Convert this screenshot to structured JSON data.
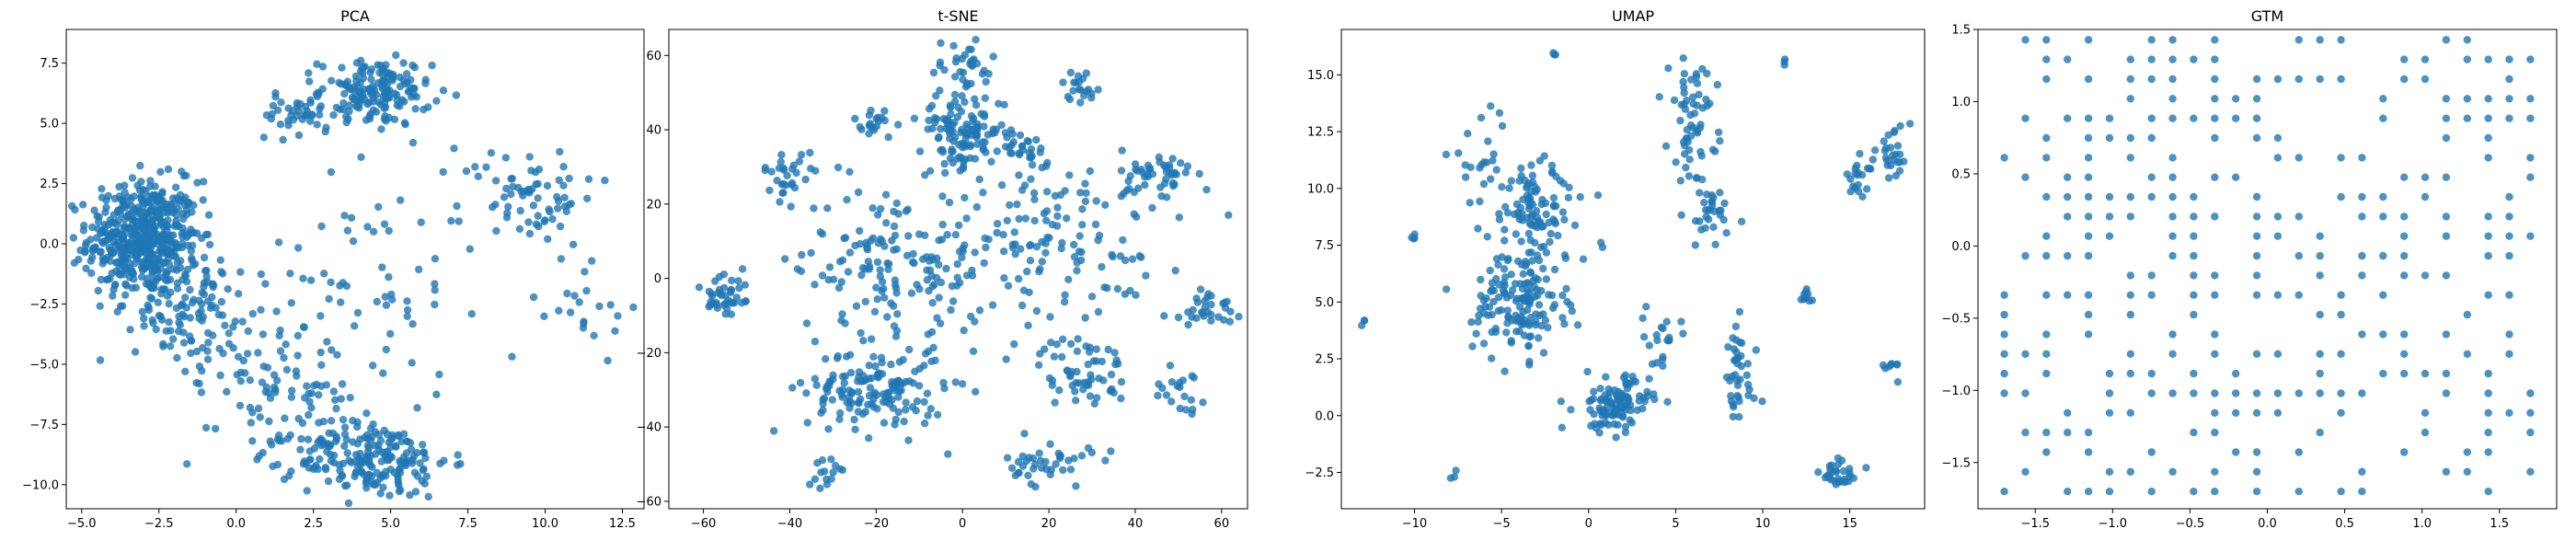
{
  "colors": {
    "marker": "#1f77b4",
    "marker_opacity": 0.8
  },
  "chart_data": [
    {
      "type": "scatter",
      "title": "PCA",
      "xlabel": "",
      "ylabel": "",
      "xlim": [
        -5.5,
        13.2
      ],
      "ylim": [
        -11.0,
        8.9
      ],
      "xticks": [
        -5.0,
        -2.5,
        0.0,
        2.5,
        5.0,
        7.5,
        10.0,
        12.5
      ],
      "xtick_labels": [
        "−5.0",
        "−2.5",
        "0.0",
        "2.5",
        "5.0",
        "7.5",
        "10.0",
        "12.5"
      ],
      "yticks": [
        -10.0,
        -7.5,
        -5.0,
        -2.5,
        0.0,
        2.5,
        5.0,
        7.5
      ],
      "ytick_labels": [
        "−10.0",
        "−7.5",
        "−5.0",
        "−2.5",
        "0.0",
        "2.5",
        "5.0",
        "7.5"
      ],
      "clusters": [
        {
          "cx": -3.0,
          "cy": 0.2,
          "sx": 0.9,
          "sy": 1.2,
          "n": 520
        },
        {
          "cx": -1.6,
          "cy": -2.6,
          "sx": 0.8,
          "sy": 1.0,
          "n": 90
        },
        {
          "cx": 4.5,
          "cy": 6.3,
          "sx": 0.9,
          "sy": 0.7,
          "n": 160
        },
        {
          "cx": 2.0,
          "cy": 5.3,
          "sx": 0.7,
          "sy": 0.4,
          "n": 40
        },
        {
          "cx": 9.5,
          "cy": 2.0,
          "sx": 1.1,
          "sy": 1.0,
          "n": 70
        },
        {
          "cx": 4.5,
          "cy": -9.0,
          "sx": 1.2,
          "sy": 0.8,
          "n": 180
        },
        {
          "cx": 2.5,
          "cy": -7.5,
          "sx": 1.3,
          "sy": 1.0,
          "n": 60
        },
        {
          "cx": 0.8,
          "cy": -4.8,
          "sx": 1.2,
          "sy": 1.0,
          "n": 50
        },
        {
          "cx": 3.5,
          "cy": -2.0,
          "sx": 2.5,
          "sy": 3.0,
          "n": 90
        },
        {
          "cx": 11.5,
          "cy": -3.0,
          "sx": 0.8,
          "sy": 0.8,
          "n": 20
        }
      ]
    },
    {
      "type": "scatter",
      "title": "t-SNE",
      "xlabel": "",
      "ylabel": "",
      "xlim": [
        -68,
        66
      ],
      "ylim": [
        -62,
        67
      ],
      "xticks": [
        -60,
        -40,
        -20,
        0,
        20,
        40,
        60
      ],
      "xtick_labels": [
        "−60",
        "−40",
        "−20",
        "0",
        "20",
        "40",
        "60"
      ],
      "yticks": [
        -60,
        -40,
        -20,
        0,
        20,
        40,
        60
      ],
      "ytick_labels": [
        "−60",
        "−40",
        "−20",
        "0",
        "20",
        "40",
        "60"
      ],
      "clusters": [
        {
          "cx": 0,
          "cy": 40,
          "sx": 5,
          "sy": 5,
          "n": 120
        },
        {
          "cx": 0,
          "cy": 57,
          "sx": 4,
          "sy": 4,
          "n": 30
        },
        {
          "cx": -20,
          "cy": -30,
          "sx": 8,
          "sy": 6,
          "n": 150
        },
        {
          "cx": -15,
          "cy": 5,
          "sx": 12,
          "sy": 10,
          "n": 160
        },
        {
          "cx": 28,
          "cy": -25,
          "sx": 5,
          "sy": 5,
          "n": 60
        },
        {
          "cx": 27,
          "cy": 52,
          "sx": 2,
          "sy": 2,
          "n": 20
        },
        {
          "cx": -55,
          "cy": -5,
          "sx": 3,
          "sy": 4,
          "n": 40
        },
        {
          "cx": 45,
          "cy": 27,
          "sx": 4,
          "sy": 4,
          "n": 50
        },
        {
          "cx": 20,
          "cy": -50,
          "sx": 5,
          "sy": 3,
          "n": 40
        },
        {
          "cx": 57,
          "cy": -8,
          "sx": 3,
          "sy": 3,
          "n": 30
        },
        {
          "cx": -40,
          "cy": 28,
          "sx": 3,
          "sy": 3,
          "n": 30
        },
        {
          "cx": 20,
          "cy": 10,
          "sx": 15,
          "sy": 12,
          "n": 120
        },
        {
          "cx": -30,
          "cy": -52,
          "sx": 2,
          "sy": 2,
          "n": 15
        },
        {
          "cx": 50,
          "cy": -30,
          "sx": 3,
          "sy": 3,
          "n": 20
        },
        {
          "cx": 15,
          "cy": 35,
          "sx": 3,
          "sy": 2,
          "n": 25
        },
        {
          "cx": -20,
          "cy": 42,
          "sx": 3,
          "sy": 2,
          "n": 20
        }
      ]
    },
    {
      "type": "scatter",
      "title": "UMAP",
      "xlabel": "",
      "ylabel": "",
      "xlim": [
        -14.2,
        19.3
      ],
      "ylim": [
        -4.1,
        17.0
      ],
      "xticks": [
        -10,
        -5,
        0,
        5,
        10,
        15
      ],
      "xtick_labels": [
        "−10",
        "−5",
        "0",
        "5",
        "10",
        "15"
      ],
      "yticks": [
        -2.5,
        0.0,
        2.5,
        5.0,
        7.5,
        10.0,
        12.5,
        15.0
      ],
      "ytick_labels": [
        "−2.5",
        "0.0",
        "2.5",
        "5.0",
        "7.5",
        "10.0",
        "12.5",
        "15.0"
      ],
      "clusters": [
        {
          "cx": -4,
          "cy": 5,
          "sx": 1.3,
          "sy": 1.2,
          "n": 150
        },
        {
          "cx": -3,
          "cy": 9,
          "sx": 1.5,
          "sy": 1.2,
          "n": 100
        },
        {
          "cx": 1.5,
          "cy": 0.5,
          "sx": 1.0,
          "sy": 0.6,
          "n": 110
        },
        {
          "cx": 6,
          "cy": 13,
          "sx": 0.7,
          "sy": 1.3,
          "n": 60
        },
        {
          "cx": 7,
          "cy": 9,
          "sx": 0.8,
          "sy": 0.8,
          "n": 30
        },
        {
          "cx": 8.5,
          "cy": 1.5,
          "sx": 0.6,
          "sy": 1.2,
          "n": 40
        },
        {
          "cx": 14.5,
          "cy": -2.5,
          "sx": 0.6,
          "sy": 0.4,
          "n": 30
        },
        {
          "cx": 17.5,
          "cy": 11.5,
          "sx": 0.5,
          "sy": 0.6,
          "n": 25
        },
        {
          "cx": 15.5,
          "cy": 10.5,
          "sx": 0.4,
          "sy": 0.4,
          "n": 20
        },
        {
          "cx": 12.5,
          "cy": 5.2,
          "sx": 0.3,
          "sy": 0.2,
          "n": 10
        },
        {
          "cx": 17.5,
          "cy": 2.1,
          "sx": 0.3,
          "sy": 0.2,
          "n": 8
        },
        {
          "cx": 4,
          "cy": 3.5,
          "sx": 0.6,
          "sy": 0.6,
          "n": 20
        },
        {
          "cx": -6,
          "cy": 11.5,
          "sx": 1.0,
          "sy": 0.8,
          "n": 20
        },
        {
          "cx": -10,
          "cy": 7.8,
          "sx": 0.15,
          "sy": 0.15,
          "n": 4
        },
        {
          "cx": -2,
          "cy": 15.9,
          "sx": 0.1,
          "sy": 0.1,
          "n": 3
        },
        {
          "cx": 11.2,
          "cy": 15.5,
          "sx": 0.1,
          "sy": 0.1,
          "n": 3
        },
        {
          "cx": -7.8,
          "cy": -2.7,
          "sx": 0.1,
          "sy": 0.1,
          "n": 3
        },
        {
          "cx": -13,
          "cy": 4.1,
          "sx": 0.1,
          "sy": 0.1,
          "n": 3
        }
      ]
    },
    {
      "type": "scatter",
      "title": "GTM",
      "xlabel": "",
      "ylabel": "",
      "xlim": [
        -1.87,
        1.87
      ],
      "ylim": [
        -1.82,
        1.5
      ],
      "xticks": [
        -1.5,
        -1.0,
        -0.5,
        0.0,
        0.5,
        1.0,
        1.5
      ],
      "xtick_labels": [
        "−1.5",
        "−1.0",
        "−0.5",
        "0.0",
        "0.5",
        "1.0",
        "1.5"
      ],
      "yticks": [
        -1.5,
        -1.0,
        -0.5,
        0.0,
        0.5,
        1.0,
        1.5
      ],
      "ytick_labels": [
        "−1.5",
        "−1.0",
        "−0.5",
        "0.0",
        "0.5",
        "1.0",
        "1.5"
      ],
      "grid": {
        "min": -1.7,
        "max": 1.7,
        "count": 26
      },
      "fill_rate": 0.42
    }
  ]
}
